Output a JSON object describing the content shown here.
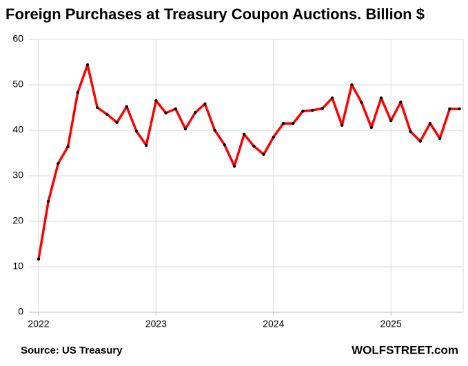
{
  "chart_data": {
    "type": "line",
    "title": "Foreign Purchases at Treasury Coupon Auctions. Billion $",
    "source": "Source: US Treasury",
    "credit": "WOLFSTREET.com",
    "categories": [
      "2022",
      null,
      null,
      null,
      null,
      null,
      null,
      null,
      null,
      null,
      null,
      null,
      "2023",
      null,
      null,
      null,
      null,
      null,
      null,
      null,
      null,
      null,
      null,
      null,
      "2024",
      null,
      null,
      null,
      null,
      null,
      null,
      null,
      null,
      null,
      null,
      null,
      "2025",
      null,
      null,
      null,
      null,
      null,
      null,
      null
    ],
    "series": [
      {
        "color": "#ff0000",
        "values": [
          11.7,
          24.4,
          32.7,
          36.4,
          48.3,
          54.4,
          45.0,
          43.5,
          41.7,
          45.2,
          39.8,
          36.7,
          46.5,
          43.8,
          44.7,
          40.3,
          43.9,
          45.8,
          40.0,
          36.8,
          32.1,
          39.1,
          36.5,
          34.7,
          38.5,
          41.5,
          41.5,
          44.2,
          44.4,
          44.8,
          47.1,
          41.1,
          50.0,
          46.1,
          40.6,
          47.1,
          42.1,
          46.2,
          39.7,
          37.6,
          41.5,
          38.2,
          44.7,
          44.7
        ]
      }
    ],
    "marker_color": "#000000",
    "ylim": [
      0,
      60
    ],
    "yticks": [
      0,
      10,
      20,
      30,
      40,
      50,
      60
    ],
    "grid": true
  }
}
